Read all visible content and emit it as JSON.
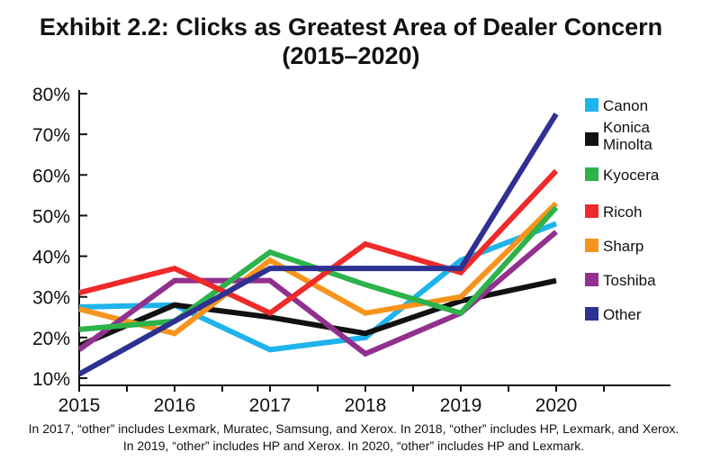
{
  "title_line1": "Exhibit 2.2: Clicks as Greatest Area of Dealer Concern",
  "title_line2": "(2015–2020)",
  "footnote": "In 2017, “other” includes Lexmark, Muratec, Samsung, and Xerox. In 2018, “other” includes HP, Lexmark, and Xerox. In 2019, “other” includes HP and Xerox. In 2020, “other” includes HP and Lexmark.",
  "chart_data": {
    "type": "line",
    "title": "Exhibit 2.2: Clicks as Greatest Area of Dealer Concern (2015–2020)",
    "xlabel": "",
    "ylabel": "",
    "x": [
      "2015",
      "2016",
      "2017",
      "2018",
      "2019",
      "2020"
    ],
    "ylim": [
      10,
      80
    ],
    "yticks": [
      "10%",
      "20%",
      "30%",
      "40%",
      "50%",
      "60%",
      "70%",
      "80%"
    ],
    "grid": false,
    "legend_position": "right",
    "series": [
      {
        "name": "Canon",
        "color": "#1fb3ec",
        "values": [
          27.5,
          28,
          17,
          20,
          39,
          48
        ]
      },
      {
        "name": "Konica Minolta",
        "color": "#111111",
        "values": [
          18,
          28,
          25,
          21,
          29,
          34
        ]
      },
      {
        "name": "Kyocera",
        "color": "#2db34a",
        "values": [
          22,
          24,
          41,
          33,
          26,
          52
        ]
      },
      {
        "name": "Ricoh",
        "color": "#ee2a2a",
        "values": [
          31,
          37,
          26,
          43,
          36,
          61
        ]
      },
      {
        "name": "Sharp",
        "color": "#f7941d",
        "values": [
          27,
          21,
          39,
          26,
          30,
          53
        ]
      },
      {
        "name": "Toshiba",
        "color": "#92308e",
        "values": [
          17,
          34,
          34,
          16,
          26,
          46
        ]
      },
      {
        "name": "Other",
        "color": "#2e3192",
        "values": [
          11,
          24,
          37,
          37,
          37,
          75
        ]
      }
    ]
  }
}
